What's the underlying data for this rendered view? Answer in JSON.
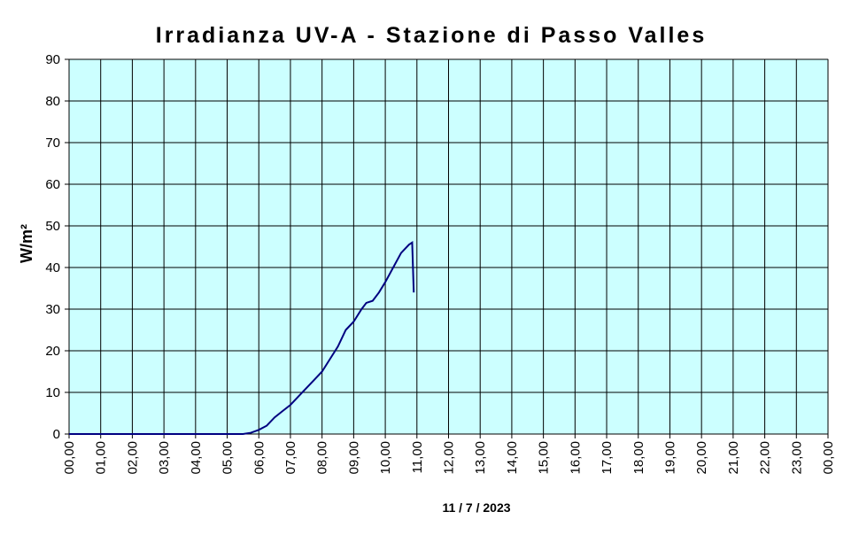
{
  "chart_data": {
    "type": "line",
    "title": "Irradianza UV-A - Stazione di Passo Valles",
    "y_label": "W/m²",
    "x_label": "11 / 7 / 2023",
    "x": [
      0,
      1,
      2,
      3,
      4,
      5,
      5.5,
      5.75,
      6.0,
      6.25,
      6.5,
      6.75,
      7.0,
      7.25,
      7.5,
      7.75,
      8.0,
      8.25,
      8.5,
      8.75,
      9.0,
      9.25,
      9.4,
      9.6,
      9.8,
      10.0,
      10.25,
      10.5,
      10.75,
      10.85,
      10.9
    ],
    "series": [
      {
        "name": "UV-A",
        "color": "#000080",
        "values": [
          0,
          0,
          0,
          0,
          0,
          0,
          0,
          0.3,
          1,
          2,
          4,
          5.5,
          7,
          9,
          11,
          13,
          15,
          18,
          21,
          25,
          27,
          30,
          31.5,
          32,
          34,
          36.5,
          40,
          43.5,
          45.5,
          46,
          34
        ]
      }
    ],
    "xlim": [
      0,
      24
    ],
    "xticks": [
      {
        "value": 0,
        "label": "00,00"
      },
      {
        "value": 1,
        "label": "01,00"
      },
      {
        "value": 2,
        "label": "02,00"
      },
      {
        "value": 3,
        "label": "03,00"
      },
      {
        "value": 4,
        "label": "04,00"
      },
      {
        "value": 5,
        "label": "05,00"
      },
      {
        "value": 6,
        "label": "06,00"
      },
      {
        "value": 7,
        "label": "07,00"
      },
      {
        "value": 8,
        "label": "08,00"
      },
      {
        "value": 9,
        "label": "09,00"
      },
      {
        "value": 10,
        "label": "10,00"
      },
      {
        "value": 11,
        "label": "11,00"
      },
      {
        "value": 12,
        "label": "12,00"
      },
      {
        "value": 13,
        "label": "13,00"
      },
      {
        "value": 14,
        "label": "14,00"
      },
      {
        "value": 15,
        "label": "15,00"
      },
      {
        "value": 16,
        "label": "16,00"
      },
      {
        "value": 17,
        "label": "17,00"
      },
      {
        "value": 18,
        "label": "18,00"
      },
      {
        "value": 19,
        "label": "19,00"
      },
      {
        "value": 20,
        "label": "20,00"
      },
      {
        "value": 21,
        "label": "21,00"
      },
      {
        "value": 22,
        "label": "22,00"
      },
      {
        "value": 23,
        "label": "23,00"
      },
      {
        "value": 24,
        "label": "00,00"
      }
    ],
    "ylim": [
      0,
      90
    ],
    "yticks": [
      0,
      10,
      20,
      30,
      40,
      50,
      60,
      70,
      80,
      90
    ],
    "grid": true,
    "plot_background": "#ccffff"
  }
}
